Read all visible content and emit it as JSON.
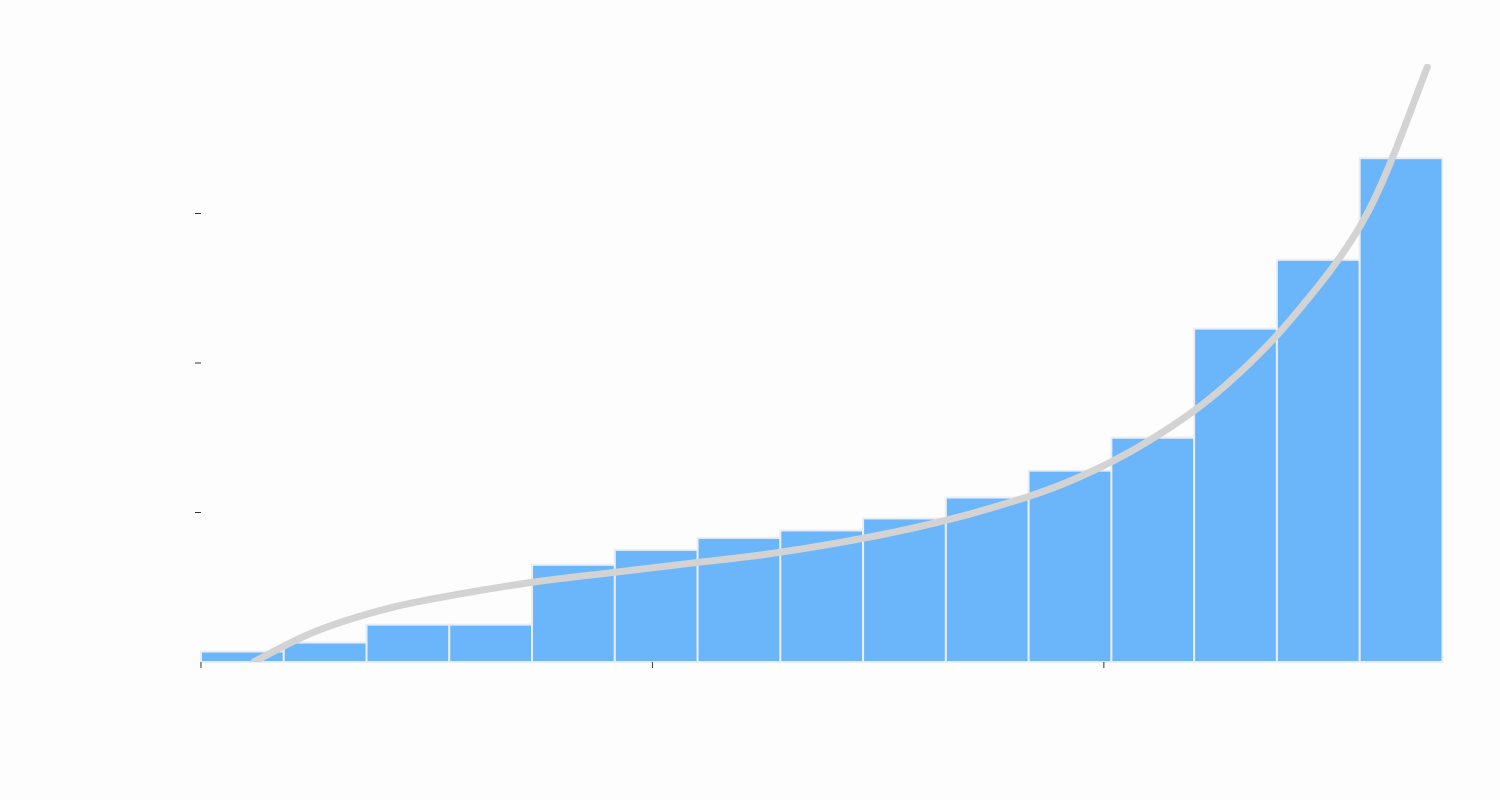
{
  "chart_data": {
    "type": "bar",
    "bar_values": [
      0.07,
      0.13,
      0.25,
      0.25,
      0.65,
      0.75,
      0.83,
      0.88,
      0.96,
      1.1,
      1.28,
      1.5,
      2.23,
      2.69,
      3.37
    ],
    "bin_edges": [
      0,
      0.11,
      0.22,
      0.33,
      0.44,
      0.55,
      0.66,
      0.77,
      0.88,
      0.99,
      1.1,
      1.21,
      1.32,
      1.43,
      1.54,
      1.65
    ],
    "xlim": [
      0,
      1.68
    ],
    "ylim": [
      0,
      4
    ],
    "x_ticks": [
      0,
      0.6,
      1.2
    ],
    "y_ticks": [
      0,
      1,
      2,
      3
    ],
    "x_tick_labels": [
      "",
      "",
      ""
    ],
    "y_tick_labels": [
      "",
      "",
      "",
      ""
    ],
    "title": "",
    "xlabel": "",
    "ylabel": "",
    "grid": false,
    "series": [
      {
        "type": "line",
        "x": [
          0.07,
          0.15,
          0.25,
          0.35,
          0.45,
          0.55,
          0.65,
          0.75,
          0.85,
          0.95,
          1.05,
          1.15,
          1.25,
          1.35,
          1.45,
          1.55,
          1.63
        ],
        "y": [
          0.0,
          0.2,
          0.36,
          0.46,
          0.54,
          0.6,
          0.66,
          0.72,
          0.8,
          0.9,
          1.03,
          1.2,
          1.45,
          1.8,
          2.3,
          3.0,
          3.98
        ]
      }
    ],
    "colors": {
      "bar_fill": "#6bb5fb",
      "bar_edge": "#e8eef4",
      "curve": "#d3d3d3",
      "axis": "#333333"
    }
  }
}
